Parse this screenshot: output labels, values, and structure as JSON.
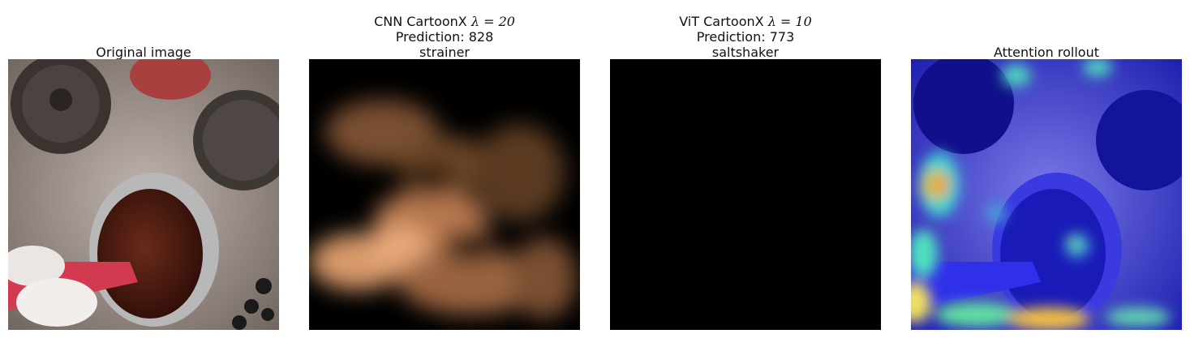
{
  "panels": [
    {
      "title": "Original image"
    },
    {
      "title_prefix": "CNN CartoonX ",
      "title_lambda": "λ = 20",
      "line2": "Prediction: 828",
      "line3": "strainer"
    },
    {
      "title_prefix": "ViT CartoonX ",
      "title_lambda": "λ = 10",
      "line2": "Prediction: 773",
      "line3": "saltshaker"
    },
    {
      "title": "Attention rollout"
    }
  ],
  "colors": {
    "cnn_map_peak": "#e8a878",
    "vit_map": "#000000",
    "attention_overlay": "#2a2ad8"
  }
}
